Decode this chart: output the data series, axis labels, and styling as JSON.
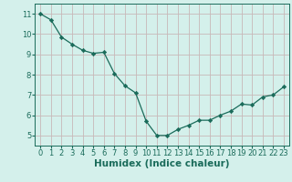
{
  "x": [
    0,
    1,
    2,
    3,
    4,
    5,
    6,
    7,
    8,
    9,
    10,
    11,
    12,
    13,
    14,
    15,
    16,
    17,
    18,
    19,
    20,
    21,
    22,
    23
  ],
  "y": [
    11.0,
    10.7,
    9.85,
    9.5,
    9.2,
    9.05,
    9.1,
    8.05,
    7.45,
    7.1,
    5.7,
    5.0,
    5.0,
    5.3,
    5.5,
    5.75,
    5.75,
    6.0,
    6.2,
    6.55,
    6.5,
    6.9,
    7.0,
    7.4
  ],
  "line_color": "#1a6b5a",
  "marker": "D",
  "marker_size": 2.2,
  "bg_color": "#d4f0eb",
  "grid_color": "#c8b8b8",
  "xlabel": "Humidex (Indice chaleur)",
  "ylim": [
    4.5,
    11.5
  ],
  "xlim": [
    -0.5,
    23.5
  ],
  "yticks": [
    5,
    6,
    7,
    8,
    9,
    10,
    11
  ],
  "xticks": [
    0,
    1,
    2,
    3,
    4,
    5,
    6,
    7,
    8,
    9,
    10,
    11,
    12,
    13,
    14,
    15,
    16,
    17,
    18,
    19,
    20,
    21,
    22,
    23
  ],
  "tick_fontsize": 6.0,
  "xlabel_fontsize": 7.5,
  "linewidth": 0.9
}
